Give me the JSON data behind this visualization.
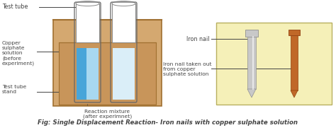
{
  "fig_width": 4.74,
  "fig_height": 1.84,
  "dpi": 100,
  "bg_color": "#ffffff",
  "caption": "Fig: Single Displacement Reaction- Iron nails with copper sulphate solution",
  "caption_fontsize": 6.2,
  "stand_outer_color": "#d4a870",
  "stand_inner_color": "#c8955a",
  "stand_border": "#a07030",
  "tube_blue_top": "#a8d8f0",
  "tube_blue_bot": "#2090d0",
  "tube_clear_color": "#daeef8",
  "box_nail_bg": "#f5f0b8",
  "box_nail_border": "#b8b060",
  "nail_silver_color": "#c8c8c8",
  "nail_silver_dark": "#909090",
  "nail_copper_color": "#c06828",
  "nail_copper_dark": "#904010",
  "label_fontsize": 5.8,
  "label_fontsize_sm": 5.4,
  "line_color": "#444444",
  "labels": {
    "test_tube": "Test tube",
    "copper_sulphate": "Copper\nsulphate\nsolution\n(before\nexperiment)",
    "test_tube_stand": "Test tube\nstand",
    "reaction_mixture": "Reaction mixture\n(after experimnet)",
    "iron_nail": "Iron nail",
    "iron_nail_taken": "Iron nail taken out\nfrom copper\nsulphate solution"
  }
}
